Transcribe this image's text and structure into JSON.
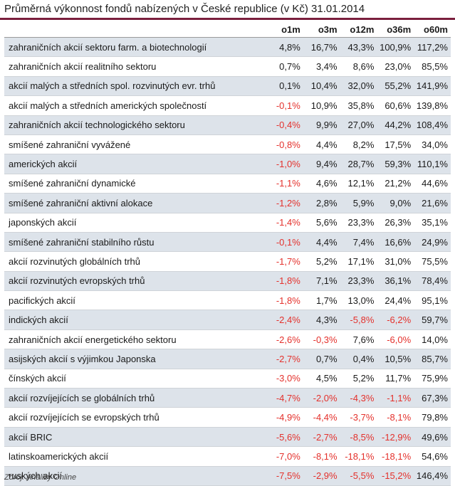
{
  "title": "Průměrná výkonnost fondů nabízených v České republice (v Kč) 31.01.2014",
  "columns": [
    "",
    "o1m",
    "o3m",
    "o12m",
    "o36m",
    "o60m"
  ],
  "rows": [
    {
      "name": "zahraničních akcií sektoru farm. a biotechnologií",
      "values": [
        "4,8%",
        "16,7%",
        "43,3%",
        "100,9%",
        "117,2%"
      ]
    },
    {
      "name": "zahraničních akcií realitního sektoru",
      "values": [
        "0,7%",
        "3,4%",
        "8,6%",
        "23,0%",
        "85,5%"
      ]
    },
    {
      "name": "akcií malých a středních spol. rozvinutých evr. trhů",
      "values": [
        "0,1%",
        "10,4%",
        "32,0%",
        "55,2%",
        "141,9%"
      ]
    },
    {
      "name": "akcií malých a středních amerických společností",
      "values": [
        "-0,1%",
        "10,9%",
        "35,8%",
        "60,6%",
        "139,8%"
      ]
    },
    {
      "name": "zahraničních akcií technologického sektoru",
      "values": [
        "-0,4%",
        "9,9%",
        "27,0%",
        "44,2%",
        "108,4%"
      ]
    },
    {
      "name": "smíšené zahraniční vyvážené",
      "values": [
        "-0,8%",
        "4,4%",
        "8,2%",
        "17,5%",
        "34,0%"
      ]
    },
    {
      "name": "amerických akcií",
      "values": [
        "-1,0%",
        "9,4%",
        "28,7%",
        "59,3%",
        "110,1%"
      ]
    },
    {
      "name": "smíšené zahraniční dynamické",
      "values": [
        "-1,1%",
        "4,6%",
        "12,1%",
        "21,2%",
        "44,6%"
      ]
    },
    {
      "name": "smíšené zahraniční aktivní alokace",
      "values": [
        "-1,2%",
        "2,8%",
        "5,9%",
        "9,0%",
        "21,6%"
      ]
    },
    {
      "name": "japonských akcií",
      "values": [
        "-1,4%",
        "5,6%",
        "23,3%",
        "26,3%",
        "35,1%"
      ]
    },
    {
      "name": "smíšené zahraniční stabilního růstu",
      "values": [
        "-0,1%",
        "4,4%",
        "7,4%",
        "16,6%",
        "24,9%"
      ]
    },
    {
      "name": "akcií rozvinutých globálních trhů",
      "values": [
        "-1,7%",
        "5,2%",
        "17,1%",
        "31,0%",
        "75,5%"
      ]
    },
    {
      "name": "akcií rozvinutých evropských trhů",
      "values": [
        "-1,8%",
        "7,1%",
        "23,3%",
        "36,1%",
        "78,4%"
      ]
    },
    {
      "name": "pacifických akcií",
      "values": [
        "-1,8%",
        "1,7%",
        "13,0%",
        "24,4%",
        "95,1%"
      ]
    },
    {
      "name": "indických akcií",
      "values": [
        "-2,4%",
        "4,3%",
        "-5,8%",
        "-6,2%",
        "59,7%"
      ]
    },
    {
      "name": "zahraničních akcií energetického sektoru",
      "values": [
        "-2,6%",
        "-0,3%",
        "7,6%",
        "-6,0%",
        "14,0%"
      ]
    },
    {
      "name": "asijských akcií s výjimkou Japonska",
      "values": [
        "-2,7%",
        "0,7%",
        "0,4%",
        "10,5%",
        "85,7%"
      ]
    },
    {
      "name": "čínských akcií",
      "values": [
        "-3,0%",
        "4,5%",
        "5,2%",
        "11,7%",
        "75,9%"
      ]
    },
    {
      "name": "akcií rozvíjejících se globálních trhů",
      "values": [
        "-4,7%",
        "-2,0%",
        "-4,3%",
        "-1,1%",
        "67,3%"
      ]
    },
    {
      "name": "akcií rozvíjejících se evropských trhů",
      "values": [
        "-4,9%",
        "-4,4%",
        "-3,7%",
        "-8,1%",
        "79,8%"
      ]
    },
    {
      "name": "akcií BRIC",
      "values": [
        "-5,6%",
        "-2,7%",
        "-8,5%",
        "-12,9%",
        "49,6%"
      ]
    },
    {
      "name": "latinskoamerických akcií",
      "values": [
        "-7,0%",
        "-8,1%",
        "-18,1%",
        "-18,1%",
        "54,6%"
      ]
    },
    {
      "name": "ruských akcií",
      "values": [
        "-7,5%",
        "-2,9%",
        "-5,5%",
        "-15,2%",
        "146,4%"
      ]
    }
  ],
  "source": "Zdroj: Analizy Online",
  "colors": {
    "accent_rule": "#7a1f3d",
    "shaded_row": "#dde3ea",
    "negative": "#e4312c",
    "positive": "#1a1a1a"
  }
}
